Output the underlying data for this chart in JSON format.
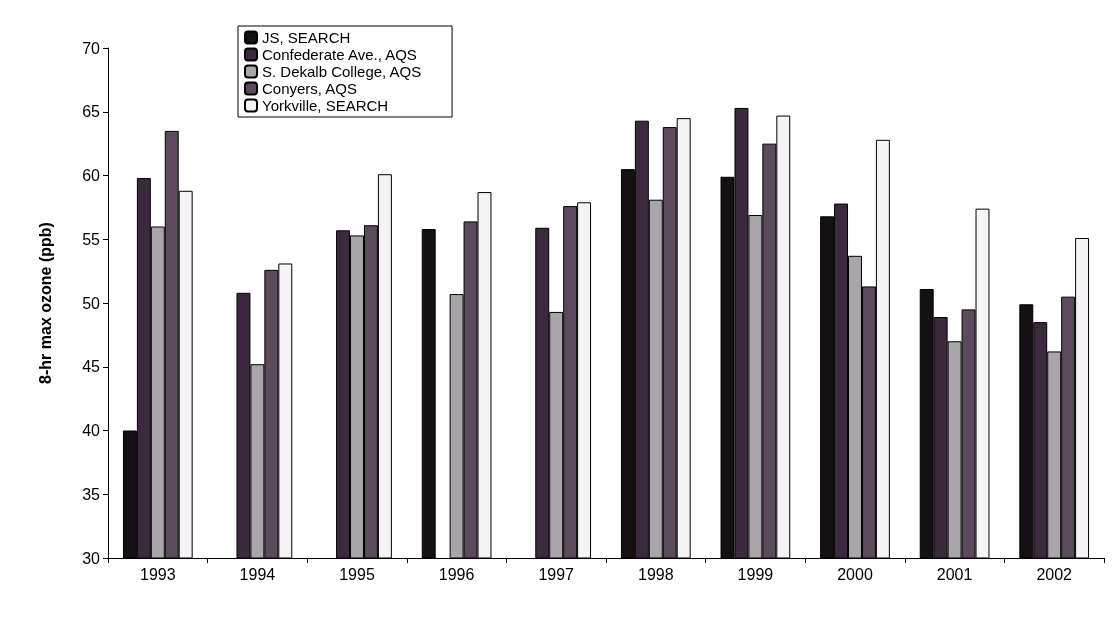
{
  "chart_data": {
    "type": "bar",
    "ylabel": "8-hr max ozone (ppb)",
    "categories": [
      "1993",
      "1994",
      "1995",
      "1996",
      "1997",
      "1998",
      "1999",
      "2000",
      "2001",
      "2002"
    ],
    "series": [
      {
        "name": "JS, SEARCH",
        "color": "#141014",
        "values": [
          40,
          null,
          null,
          55.8,
          null,
          60.5,
          59.9,
          56.8,
          51.1,
          49.9
        ]
      },
      {
        "name": "Confederate Ave., AQS",
        "color": "#3b2a3d",
        "values": [
          59.8,
          50.8,
          55.7,
          null,
          55.9,
          64.3,
          65.3,
          57.8,
          48.9,
          48.5
        ]
      },
      {
        "name": "S. Dekalb College, AQS",
        "color": "#a9a5ab",
        "values": [
          56,
          45.2,
          55.3,
          50.7,
          49.3,
          58.1,
          56.9,
          53.7,
          47,
          46.2
        ]
      },
      {
        "name": "Conyers, AQS",
        "color": "#5b4b5d",
        "values": [
          63.5,
          52.6,
          56.1,
          56.4,
          57.6,
          63.8,
          62.5,
          51.3,
          49.5,
          50.5
        ]
      },
      {
        "name": "Yorkville, SEARCH",
        "color": "#f5f3f5",
        "values": [
          58.8,
          53.1,
          60.1,
          58.7,
          57.9,
          64.5,
          64.7,
          62.8,
          57.4,
          55.1
        ]
      }
    ],
    "ylim": [
      30,
      70
    ],
    "yticks": [
      30,
      35,
      40,
      45,
      50,
      55,
      60,
      65,
      70
    ],
    "grid": false,
    "legend": "top left"
  }
}
